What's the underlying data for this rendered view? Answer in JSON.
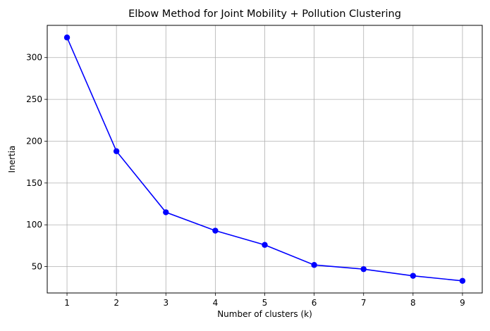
{
  "chart_data": {
    "type": "line",
    "title": "Elbow Method for Joint Mobility + Pollution Clustering",
    "xlabel": "Number of clusters (k)",
    "ylabel": "Inertia",
    "x": [
      1,
      2,
      3,
      4,
      5,
      6,
      7,
      8,
      9
    ],
    "series": [
      {
        "values": [
          324,
          188,
          115,
          93,
          76,
          52,
          47,
          39,
          33
        ]
      }
    ],
    "xlim": [
      0.6,
      9.4
    ],
    "ylim": [
      18.5,
      338.5
    ],
    "x_ticks": [
      "1",
      "2",
      "3",
      "4",
      "5",
      "6",
      "7",
      "8",
      "9"
    ],
    "y_ticks": [
      "50",
      "100",
      "150",
      "200",
      "250",
      "300"
    ],
    "grid": true,
    "marker": "circle",
    "line_color": "#0000ff",
    "grid_color": "#b0b0b0"
  }
}
